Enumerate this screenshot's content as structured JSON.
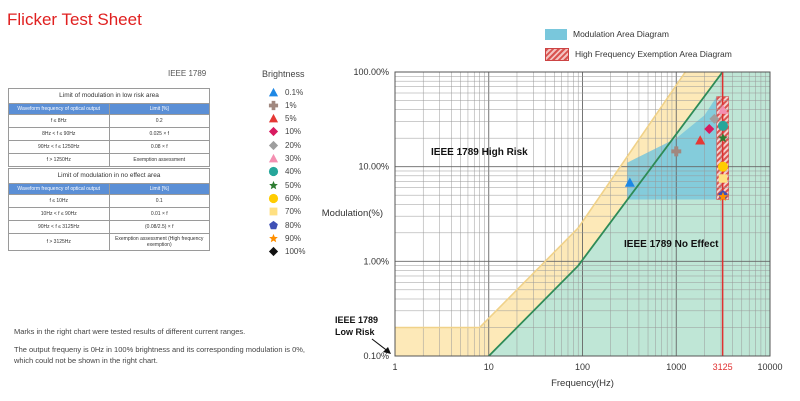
{
  "page_title": "Flicker Test Sheet",
  "standard_label": "IEEE 1789",
  "low_risk_table": {
    "caption": "Limit of modulation in low risk area",
    "header": [
      "Waveform frequency of optical output",
      "Limit [%]"
    ],
    "rows": [
      [
        "f ≤ 8Hz",
        "0.2"
      ],
      [
        "8Hz < f ≤ 90Hz",
        "0.025 × f"
      ],
      [
        "90Hz < f ≤ 1250Hz",
        "0.08 × f"
      ],
      [
        "f > 1250Hz",
        "Exemption assessment"
      ]
    ]
  },
  "no_effect_table": {
    "caption": "Limit of modulation in no effect area",
    "header": [
      "Waveform frequency of optical output",
      "Limit [%]"
    ],
    "rows": [
      [
        "f ≤ 10Hz",
        "0.1"
      ],
      [
        "10Hz < f ≤ 90Hz",
        "0.01 × f"
      ],
      [
        "90Hz < f ≤ 3125Hz",
        "(0.08/2.5) × f"
      ],
      [
        "f > 3125Hz",
        "Exemption assessment (High frequency exemption)"
      ]
    ]
  },
  "brightness_legend": {
    "title": "Brightness",
    "items": [
      {
        "label": "0.1%",
        "color": "#1e88e5",
        "shape": "triangle"
      },
      {
        "label": "1%",
        "color": "#a1887f",
        "shape": "cross"
      },
      {
        "label": "5%",
        "color": "#e53935",
        "shape": "triangle"
      },
      {
        "label": "10%",
        "color": "#d81b60",
        "shape": "diamond"
      },
      {
        "label": "20%",
        "color": "#9e9e9e",
        "shape": "diamond"
      },
      {
        "label": "30%",
        "color": "#f48fb1",
        "shape": "triangle"
      },
      {
        "label": "40%",
        "color": "#26a69a",
        "shape": "circle"
      },
      {
        "label": "50%",
        "color": "#2e7d32",
        "shape": "star"
      },
      {
        "label": "60%",
        "color": "#ffcc00",
        "shape": "circle"
      },
      {
        "label": "70%",
        "color": "#ffe082",
        "shape": "square"
      },
      {
        "label": "80%",
        "color": "#3f51b5",
        "shape": "pentagon"
      },
      {
        "label": "90%",
        "color": "#ff8f00",
        "shape": "star"
      },
      {
        "label": "100%",
        "color": "#111111",
        "shape": "diamond"
      }
    ]
  },
  "notes": [
    "Marks in the right chart were tested results of different current ranges.",
    "The output frequeny is 0Hz in 100% brightness and its corresponding modulation is 0%, which could not be shown in the right chart."
  ],
  "chart_legend": {
    "modulation_area": "Modulation Area Diagram",
    "exemption_area": "High Frequency Exemption Area Diagram"
  },
  "chart_data": {
    "type": "scatter",
    "xlabel": "Frequency(Hz)",
    "ylabel": "Modulation(%)",
    "x_scale": "log",
    "y_scale": "log",
    "xlim": [
      1,
      10000
    ],
    "ylim": [
      0.1,
      100
    ],
    "x_ticks": [
      {
        "v": 1,
        "label": "1"
      },
      {
        "v": 10,
        "label": "10"
      },
      {
        "v": 100,
        "label": "100"
      },
      {
        "v": 1000,
        "label": "1000"
      },
      {
        "v": 3125,
        "label": "3125",
        "color": "#e03030"
      },
      {
        "v": 10000,
        "label": "10000"
      }
    ],
    "y_ticks": [
      {
        "v": 0.1,
        "label": "0.10%"
      },
      {
        "v": 1,
        "label": "1.00%"
      },
      {
        "v": 10,
        "label": "10.00%"
      },
      {
        "v": 100,
        "label": "100.00%"
      }
    ],
    "grid": true,
    "region_labels": [
      "IEEE 1789 High Risk",
      "IEEE 1789 No Effect",
      "IEEE 1789 Low Risk"
    ],
    "low_risk_boundary": [
      [
        1,
        0.2
      ],
      [
        8,
        0.2
      ],
      [
        90,
        2.25
      ],
      [
        1250,
        100
      ]
    ],
    "no_effect_boundary": [
      [
        10,
        0.1
      ],
      [
        90,
        0.9
      ],
      [
        3125,
        100
      ]
    ],
    "exemption_frequency": 3125,
    "modulation_area": [
      [
        300,
        7
      ],
      [
        300,
        11
      ],
      [
        1000,
        20
      ],
      [
        2000,
        35
      ],
      [
        2700,
        55
      ],
      [
        2700,
        4.5
      ],
      [
        300,
        4.5
      ]
    ],
    "exemption_area_y": [
      4.5,
      55
    ],
    "points": [
      {
        "series": "0.1%",
        "x": 320,
        "y": 6.8
      },
      {
        "series": "1%",
        "x": 1000,
        "y": 14.5
      },
      {
        "series": "5%",
        "x": 1800,
        "y": 19
      },
      {
        "series": "10%",
        "x": 2250,
        "y": 25
      },
      {
        "series": "20%",
        "x": 2550,
        "y": 32
      },
      {
        "series": "30%",
        "x": 3150,
        "y": 40
      },
      {
        "series": "40%",
        "x": 3150,
        "y": 27
      },
      {
        "series": "50%",
        "x": 3150,
        "y": 20
      },
      {
        "series": "60%",
        "x": 3150,
        "y": 10
      },
      {
        "series": "70%",
        "x": 3150,
        "y": 7.5
      },
      {
        "series": "80%",
        "x": 3150,
        "y": 5
      },
      {
        "series": "90%",
        "x": 3150,
        "y": 4.8
      }
    ]
  }
}
